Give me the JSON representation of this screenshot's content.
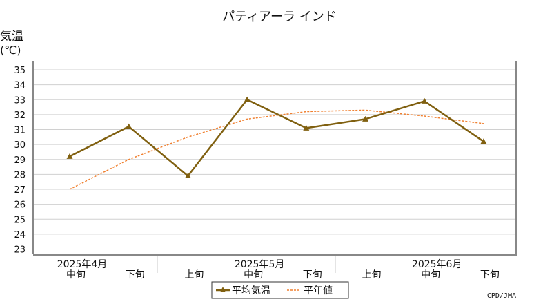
{
  "chart_data": {
    "type": "line",
    "title": "パティアーラ インド",
    "ylabel": "気温",
    "yunit": "(℃)",
    "ylim": [
      23,
      35
    ],
    "yticks": [
      23,
      24,
      25,
      26,
      27,
      28,
      29,
      30,
      31,
      32,
      33,
      34,
      35
    ],
    "grid": true,
    "categories": [
      "中旬",
      "下旬",
      "上旬",
      "中旬",
      "下旬",
      "上旬",
      "中旬",
      "下旬"
    ],
    "months": [
      "2025年4月",
      "2025年5月",
      "2025年6月"
    ],
    "series": [
      {
        "name": "平均気温",
        "color": "#806010",
        "style": "solid-triangle-markers",
        "values": [
          29.2,
          31.2,
          27.9,
          33.0,
          31.1,
          31.7,
          32.9,
          30.2
        ]
      },
      {
        "name": "平年値",
        "color": "#f08030",
        "style": "dashed",
        "values": [
          27.0,
          29.0,
          30.5,
          31.7,
          32.2,
          32.3,
          31.9,
          31.4
        ]
      }
    ],
    "legend_position": "bottom-center",
    "credit": "CPD/JMA"
  }
}
